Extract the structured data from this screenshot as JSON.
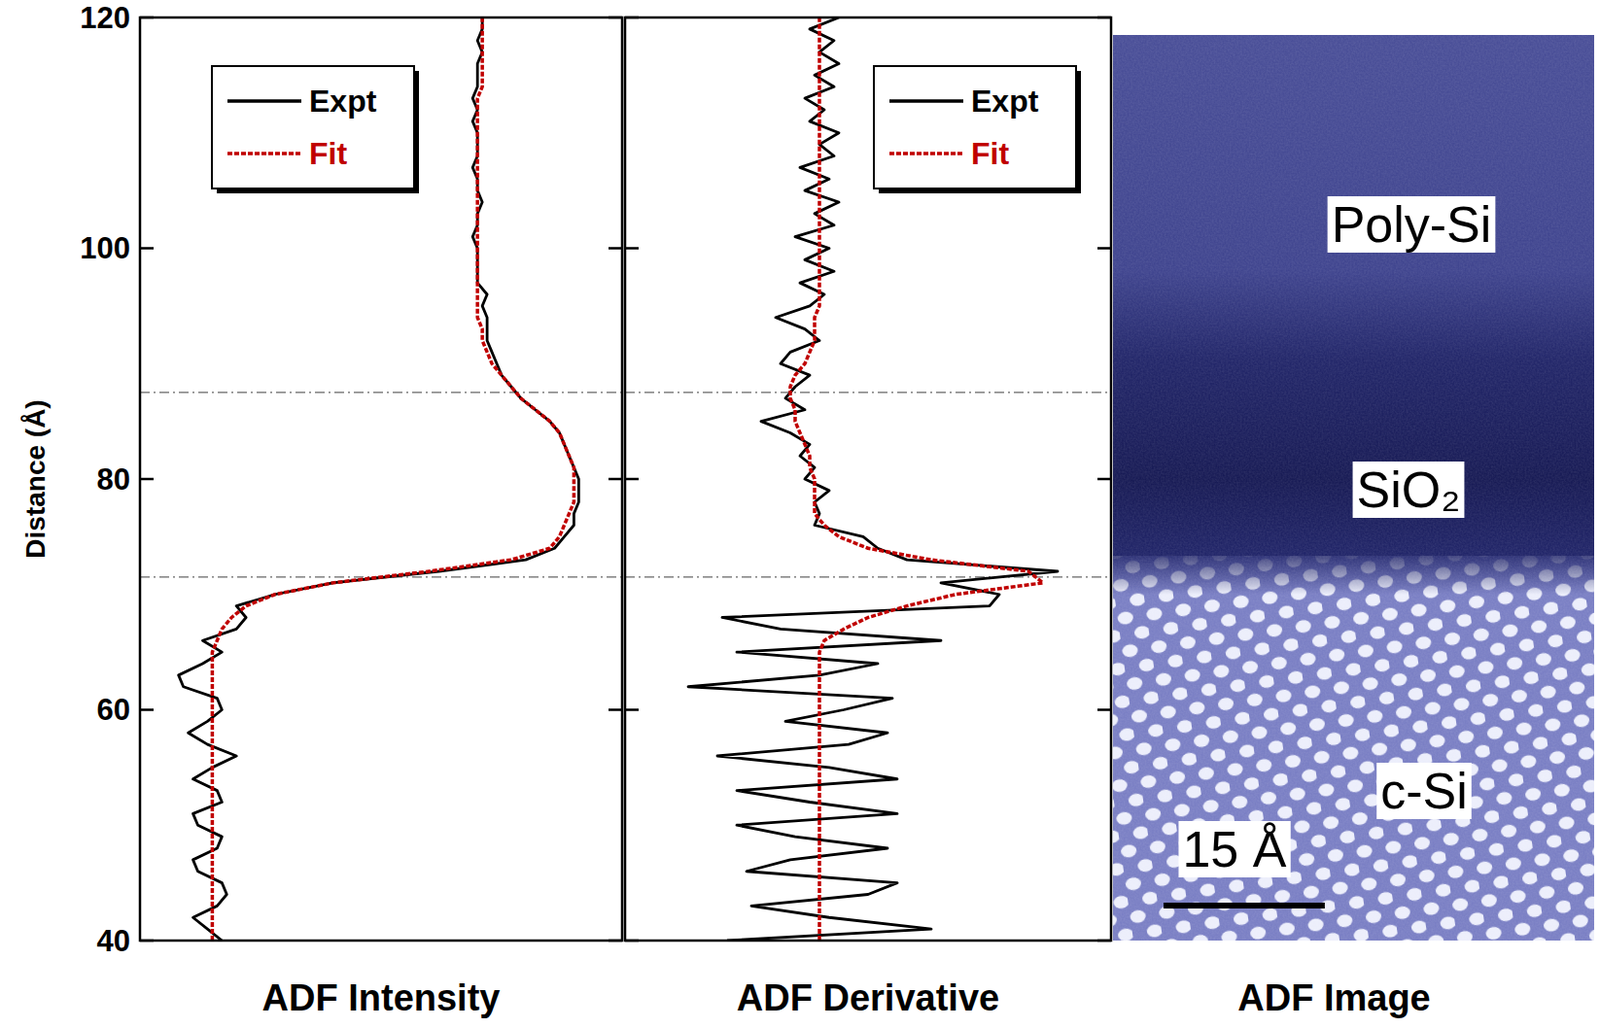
{
  "chart_data": [
    {
      "type": "line",
      "orientation": "horizontal",
      "xlabel": "ADF Intensity",
      "ylabel": "Distance (Å)",
      "xlim": [
        0,
        1
      ],
      "ylim": [
        40,
        120
      ],
      "yticks": [
        40,
        60,
        80,
        100,
        120
      ],
      "tick_labels": "y",
      "legend": "upper left",
      "reference_lines": [
        71.5,
        87.5
      ],
      "y": [
        40,
        41,
        42,
        43,
        44,
        45,
        46,
        47,
        48,
        49,
        50,
        51,
        52,
        53,
        54,
        55,
        56,
        57,
        58,
        59,
        60,
        61,
        62,
        63,
        64,
        65,
        66,
        67,
        68,
        69,
        70,
        71,
        72,
        73,
        74,
        75,
        76,
        77,
        78,
        79,
        80,
        81,
        82,
        83,
        84,
        85,
        86,
        87,
        88,
        89,
        90,
        91,
        92,
        93,
        94,
        95,
        96,
        97,
        98,
        99,
        100,
        101,
        102,
        103,
        104,
        105,
        106,
        107,
        108,
        109,
        110,
        111,
        112,
        113,
        114,
        115,
        116,
        117,
        118,
        119,
        120
      ],
      "series": [
        {
          "name": "Expt",
          "color": "#000000",
          "line_style": "solid",
          "values": [
            0.17,
            0.14,
            0.11,
            0.16,
            0.18,
            0.17,
            0.12,
            0.11,
            0.16,
            0.17,
            0.12,
            0.11,
            0.17,
            0.16,
            0.11,
            0.15,
            0.2,
            0.14,
            0.1,
            0.14,
            0.17,
            0.16,
            0.09,
            0.08,
            0.13,
            0.17,
            0.13,
            0.2,
            0.22,
            0.2,
            0.28,
            0.4,
            0.62,
            0.8,
            0.86,
            0.88,
            0.9,
            0.9,
            0.91,
            0.91,
            0.91,
            0.9,
            0.89,
            0.88,
            0.87,
            0.85,
            0.82,
            0.79,
            0.77,
            0.75,
            0.74,
            0.73,
            0.72,
            0.72,
            0.72,
            0.71,
            0.72,
            0.7,
            0.7,
            0.7,
            0.7,
            0.69,
            0.7,
            0.7,
            0.71,
            0.7,
            0.7,
            0.69,
            0.7,
            0.7,
            0.7,
            0.69,
            0.7,
            0.69,
            0.7,
            0.7,
            0.7,
            0.71,
            0.7,
            0.71,
            0.71
          ]
        },
        {
          "name": "Fit",
          "color": "#c00000",
          "line_style": "dashed",
          "values": [
            0.15,
            0.15,
            0.15,
            0.15,
            0.15,
            0.15,
            0.15,
            0.15,
            0.15,
            0.15,
            0.15,
            0.15,
            0.15,
            0.15,
            0.15,
            0.15,
            0.15,
            0.15,
            0.15,
            0.15,
            0.15,
            0.15,
            0.15,
            0.15,
            0.15,
            0.15,
            0.16,
            0.17,
            0.19,
            0.22,
            0.28,
            0.4,
            0.6,
            0.77,
            0.85,
            0.87,
            0.88,
            0.89,
            0.9,
            0.9,
            0.9,
            0.9,
            0.89,
            0.88,
            0.87,
            0.85,
            0.82,
            0.79,
            0.77,
            0.75,
            0.73,
            0.72,
            0.71,
            0.71,
            0.7,
            0.7,
            0.7,
            0.7,
            0.7,
            0.7,
            0.7,
            0.7,
            0.7,
            0.7,
            0.7,
            0.7,
            0.7,
            0.7,
            0.7,
            0.7,
            0.7,
            0.7,
            0.7,
            0.7,
            0.71,
            0.71,
            0.71,
            0.71,
            0.71,
            0.71,
            0.71
          ]
        }
      ]
    },
    {
      "type": "line",
      "orientation": "horizontal",
      "xlabel": "ADF Derivative",
      "xlim": [
        -4,
        6
      ],
      "ylim": [
        40,
        120
      ],
      "yticks": [
        40,
        60,
        80,
        100,
        120
      ],
      "tick_labels": false,
      "legend": "upper right",
      "reference_lines": [
        71.5,
        87.5
      ],
      "y": [
        40,
        41,
        42,
        43,
        44,
        45,
        46,
        47,
        48,
        49,
        50,
        51,
        52,
        53,
        54,
        55,
        56,
        57,
        58,
        59,
        60,
        61,
        62,
        63,
        64,
        65,
        66,
        67,
        68,
        69,
        70,
        71,
        72,
        73,
        74,
        75,
        76,
        77,
        78,
        79,
        80,
        81,
        82,
        83,
        84,
        85,
        86,
        87,
        88,
        89,
        90,
        91,
        92,
        93,
        94,
        95,
        96,
        97,
        98,
        99,
        100,
        101,
        102,
        103,
        104,
        105,
        106,
        107,
        108,
        109,
        110,
        111,
        112,
        113,
        114,
        115,
        116,
        117,
        118,
        119,
        120
      ],
      "series": [
        {
          "name": "Expt",
          "color": "#000000",
          "line_style": "solid",
          "values": [
            -1.9,
            2.3,
            0.2,
            -1.4,
            1.0,
            1.6,
            -1.5,
            -0.6,
            1.4,
            -0.5,
            -1.7,
            1.6,
            -0.2,
            -1.7,
            1.6,
            0.2,
            -2.1,
            0.6,
            1.4,
            -0.7,
            0.5,
            1.5,
            -2.7,
            0,
            1.2,
            -1.7,
            2.5,
            -0.8,
            -2.0,
            3.5,
            3.7,
            2.5,
            4.9,
            1.8,
            1.2,
            0.9,
            -0.1,
            0,
            -0.1,
            0.2,
            -0.3,
            -0.1,
            -0.4,
            -0.2,
            -0.6,
            -1.2,
            -0.3,
            -0.7,
            -0.5,
            -0.2,
            -0.8,
            -0.6,
            0,
            -0.3,
            -0.9,
            -0.2,
            0.1,
            -0.4,
            0.3,
            -0.3,
            0.2,
            -0.5,
            0.3,
            -0.1,
            0.4,
            -0.3,
            0.2,
            -0.4,
            0.3,
            0,
            0.4,
            -0.2,
            0.1,
            -0.3,
            0.3,
            -0.1,
            0.4,
            0,
            0.3,
            -0.2,
            0.4
          ]
        },
        {
          "name": "Fit",
          "color": "#c00000",
          "line_style": "dashed",
          "values": [
            0,
            0,
            0,
            0,
            0,
            0,
            0,
            0,
            0,
            0,
            0,
            0,
            0,
            0,
            0,
            0,
            0,
            0,
            0,
            0,
            0,
            0,
            0,
            0,
            0,
            0,
            0.1,
            0.5,
            1.0,
            1.8,
            2.8,
            4.6,
            4.3,
            2.3,
            1.0,
            0.4,
            0.1,
            -0.1,
            -0.1,
            -0.1,
            -0.1,
            -0.2,
            -0.2,
            -0.3,
            -0.4,
            -0.5,
            -0.5,
            -0.6,
            -0.6,
            -0.5,
            -0.3,
            -0.2,
            -0.1,
            -0.1,
            -0.1,
            0,
            0,
            0,
            0,
            0,
            0,
            0,
            0,
            0,
            0,
            0,
            0,
            0,
            0,
            0,
            0,
            0,
            0,
            0,
            0,
            0,
            0,
            0,
            0,
            0,
            0
          ]
        }
      ]
    }
  ],
  "image": {
    "title": "ADF Image",
    "regions": [
      "Poly-Si",
      "SiO₂",
      "c-Si"
    ],
    "scale_bar": {
      "length": 15,
      "label": "15 Å"
    }
  }
}
